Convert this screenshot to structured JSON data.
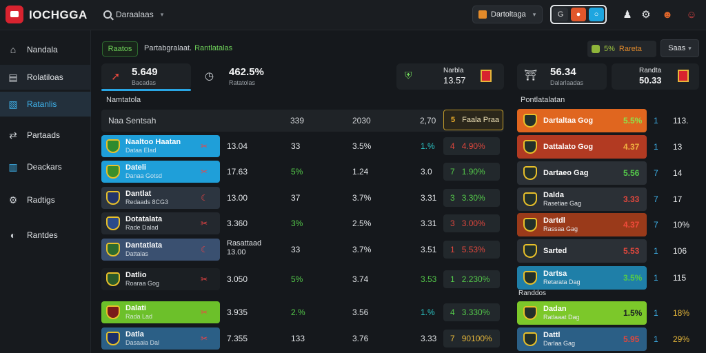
{
  "app": {
    "name": "IOCHGGA"
  },
  "search": {
    "label": "Daraalaas"
  },
  "top": {
    "manager_label": "Dartoltaga",
    "toggle": [
      "G",
      "●",
      "○"
    ],
    "colors": {
      "accent_blue": "#29a6e4",
      "accent_orange": "#e1572b",
      "brand_red": "#d8232f"
    }
  },
  "sidebar": {
    "items": [
      {
        "label": "Nandala",
        "icon": "home-icon",
        "glyph": "⌂"
      },
      {
        "label": "Rolatiloas",
        "icon": "list-icon",
        "glyph": "▤"
      },
      {
        "label": "Ratanlis",
        "icon": "document-icon",
        "glyph": "▧",
        "active": true
      },
      {
        "label": "Partaads",
        "icon": "share-icon",
        "glyph": "⇄"
      },
      {
        "label": "Deackars",
        "icon": "chart-icon",
        "glyph": "▥"
      },
      {
        "label": "Radtigs",
        "icon": "settings-icon",
        "glyph": "⚙"
      },
      {
        "label": "Rantdes",
        "icon": "dial-icon",
        "glyph": "◐"
      }
    ]
  },
  "breadcrumb": {
    "tag": "Raatos",
    "text": "Partabgralaat.",
    "highlight": "Rantlatalas"
  },
  "right_controls": {
    "pill_value": "5%",
    "pill_label": "Rareta",
    "dropdown": "Saas"
  },
  "stats": [
    {
      "value": "5.649",
      "sub": "Bacadas"
    },
    {
      "value": "462.5%",
      "sub": "Ratatolas"
    },
    {
      "value": "13.57",
      "sub": "Narbla"
    },
    {
      "value": "56.34",
      "sub": "Dalarlaadas"
    },
    {
      "value": "50.33",
      "sub": "Randta"
    }
  ],
  "table": {
    "section": "Namtatola",
    "header": {
      "name": "Naa Sentsah",
      "c1": "339",
      "c2": "2030",
      "c3": "2,70",
      "btn_num": "5",
      "btn_label": "Faala Praa"
    },
    "rows": [
      {
        "name": "Naaltoo Haatan",
        "sub": "Dataa Elad",
        "flag": "✂",
        "v1": "13.04",
        "v2": "33",
        "v3": "3.5%",
        "v4": "1.%",
        "chip_n": "4",
        "chip_v": "4.90%",
        "chip_color": "#e0473d",
        "bg": "#1f9fd9",
        "badge": "#2e8b2e",
        "v4_color": "#2cc7c7"
      },
      {
        "name": "Dateli",
        "sub": "Danaa Gotsd",
        "flag": "✂",
        "v1": "17.63",
        "v2": "5%",
        "v3": "1.24",
        "v4": "3.0",
        "chip_n": "7",
        "chip_v": "1.90%",
        "chip_color": "#54c94a",
        "bg": "#1f9fd9",
        "badge": "#3a8f2a",
        "v4_color": "#e2e5e8"
      },
      {
        "name": "Dantlat",
        "sub": "Redaads 8CG3",
        "flag": "☾",
        "v1": "13.00",
        "v2": "37",
        "v3": "3.7%",
        "v4": "3.31",
        "chip_n": "3",
        "chip_v": "3.30%",
        "chip_color": "#54c94a",
        "bg": "#2c3540",
        "badge": "#23356a",
        "v4_color": "#e2e5e8"
      },
      {
        "name": "Dotatalata",
        "sub": "Rade Dalad",
        "flag": "✂",
        "v1": "3.360",
        "v2": "3%",
        "v3": "2.5%",
        "v4": "3.31",
        "chip_n": "3",
        "chip_v": "3.00%",
        "chip_color": "#e0473d",
        "bg": "#23282e",
        "badge": "#2a4a8a",
        "v4_color": "#e2e5e8"
      },
      {
        "name": "Dantatlata",
        "sub": "Dattalas",
        "flag": "☾",
        "v1": "Rasattaad",
        "v1b": "13.00",
        "v2": "33",
        "v3": "3.7%",
        "v4": "3.51",
        "chip_n": "1",
        "chip_v": "5.53%",
        "chip_color": "#e0473d",
        "bg": "#3a5070",
        "badge": "#2e6b2e",
        "v4_color": "#e2e5e8"
      },
      {
        "name": "Datlio",
        "sub": "Roaraa Gog",
        "flag": "✂",
        "v1": "3.050",
        "v2": "5%",
        "v3": "3.74",
        "v4": "3.53",
        "chip_n": "1",
        "chip_v": "2.230%",
        "chip_color": "#54c94a",
        "bg": "#1b1f23",
        "badge": "#2a5a2a",
        "v4_color": "#54c94a"
      },
      {
        "name": "Dalati",
        "sub": "Rada Lad",
        "flag": "✂",
        "v1": "3.935",
        "v2": "2.%",
        "v3": "3.56",
        "v4": "1.%",
        "chip_n": "4",
        "chip_v": "3.330%",
        "chip_color": "#54c94a",
        "bg": "#6cc02a",
        "badge": "#7a1a1a",
        "v4_color": "#2cc7c7"
      },
      {
        "name": "Datla",
        "sub": "Dasaaia Dal",
        "flag": "✂",
        "v1": "7.355",
        "v2": "133",
        "v3": "3.76",
        "v4": "3.33",
        "chip_n": "7",
        "chip_v": "90100%",
        "chip_color": "#e6b73a",
        "bg": "#2b5f86",
        "badge": "#1b2e6b",
        "v4_color": "#e2e5e8"
      }
    ]
  },
  "right_table": {
    "section": "Pontlatalatan",
    "section2": "Randdos",
    "rows": [
      {
        "name": "Dartaltaa Gog",
        "sub": "",
        "pct": "5.5%",
        "n1": "1",
        "n2": "113.",
        "bg": "#e0661f",
        "pct_color": "#8fe04a"
      },
      {
        "name": "Dattalato Gog",
        "sub": "",
        "pct": "4.37",
        "n1": "1",
        "n2": "13",
        "bg": "#b23a22",
        "pct_color": "#f0b040"
      },
      {
        "name": "Dartaeo Gag",
        "sub": "",
        "pct": "5.56",
        "n1": "7",
        "n2": "14",
        "bg": "#2b3036",
        "pct_color": "#54c94a"
      },
      {
        "name": "Dalda",
        "sub": "Rasetiae Gag",
        "pct": "3.33",
        "n1": "7",
        "n2": "17",
        "bg": "#2b3036",
        "pct_color": "#e0473d"
      },
      {
        "name": "Dartdl",
        "sub": "Rassaa Gag",
        "pct": "4.37",
        "n1": "7",
        "n2": "10%",
        "bg": "#9a3a1a",
        "pct_color": "#f04a3a"
      },
      {
        "name": "Sarted",
        "sub": "",
        "pct": "5.53",
        "n1": "1",
        "n2": "106",
        "bg": "#2b3036",
        "pct_color": "#e0473d"
      },
      {
        "name": "Dartsa",
        "sub": "Retarata Dag",
        "pct": "3.5%",
        "n1": "1",
        "n2": "115",
        "bg": "#1f7fa8",
        "pct_color": "#54c94a"
      },
      {
        "name": "Dadan",
        "sub": "Ratlaaat Dag",
        "pct": "1.5%",
        "n1": "1",
        "n2": "18%",
        "bg": "#7cc82a",
        "pct_color": "#1b1f23"
      },
      {
        "name": "Dattl",
        "sub": "Darlaa Gag",
        "pct": "5.95",
        "n1": "1",
        "n2": "29%",
        "bg": "#2b5f86",
        "pct_color": "#e0473d"
      }
    ]
  }
}
